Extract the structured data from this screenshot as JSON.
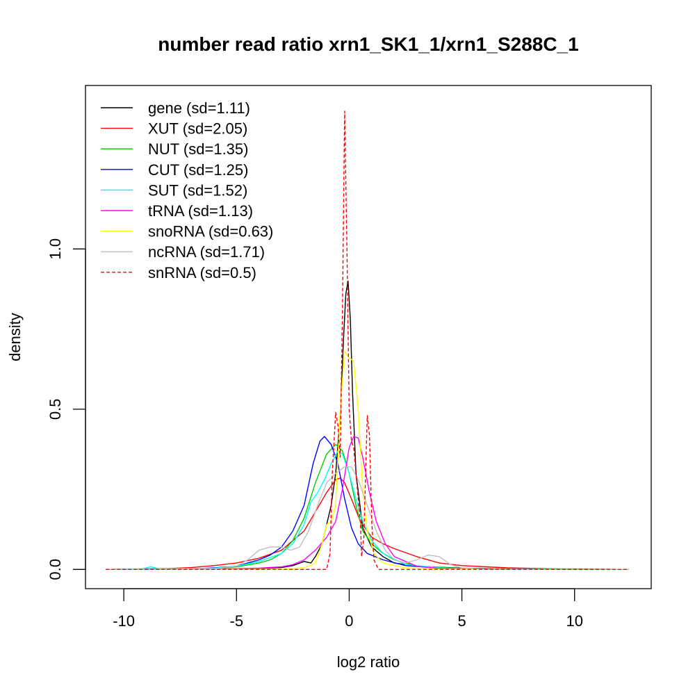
{
  "chart_data": {
    "type": "line",
    "title": "number read ratio xrn1_SK1_1/xrn1_S288C_1",
    "xlabel": "log2 ratio",
    "ylabel": "density",
    "xlim": [
      -11.7,
      13.4
    ],
    "ylim": [
      -0.06,
      1.51
    ],
    "x_ticks": [
      -10,
      -5,
      0,
      5,
      10
    ],
    "x_tick_labels": [
      "-10",
      "-5",
      "0",
      "5",
      "10"
    ],
    "y_ticks": [
      0.0,
      0.5,
      1.0
    ],
    "y_tick_labels": [
      "0.0",
      "0.5",
      "1.0"
    ],
    "grid": false,
    "legend_position": "top-left",
    "series": [
      {
        "name": "gene (sd=1.11)",
        "color": "#000000",
        "dash": false,
        "points": [
          [
            -10.8,
            0
          ],
          [
            -6,
            0.002
          ],
          [
            -4,
            0.003
          ],
          [
            -3,
            0.006
          ],
          [
            -2.5,
            0.012
          ],
          [
            -2,
            0.025
          ],
          [
            -1.7,
            0.02
          ],
          [
            -1.5,
            0.04
          ],
          [
            -1.2,
            0.08
          ],
          [
            -1,
            0.14
          ],
          [
            -0.8,
            0.2
          ],
          [
            -0.6,
            0.3
          ],
          [
            -0.4,
            0.48
          ],
          [
            -0.25,
            0.72
          ],
          [
            -0.15,
            0.86
          ],
          [
            -0.05,
            0.9
          ],
          [
            0.05,
            0.78
          ],
          [
            0.15,
            0.55
          ],
          [
            0.3,
            0.3
          ],
          [
            0.6,
            0.13
          ],
          [
            1,
            0.07
          ],
          [
            1.5,
            0.04
          ],
          [
            2,
            0.02
          ],
          [
            3,
            0.01
          ],
          [
            5,
            0.004
          ],
          [
            8,
            0.001
          ],
          [
            12.4,
            0
          ]
        ]
      },
      {
        "name": "XUT (sd=2.05)",
        "color": "#ff0000",
        "dash": false,
        "points": [
          [
            -10.8,
            0
          ],
          [
            -8,
            0.003
          ],
          [
            -7,
            0.006
          ],
          [
            -6,
            0.012
          ],
          [
            -5,
            0.02
          ],
          [
            -4,
            0.035
          ],
          [
            -3,
            0.06
          ],
          [
            -2,
            0.12
          ],
          [
            -1.5,
            0.18
          ],
          [
            -1,
            0.24
          ],
          [
            -0.6,
            0.28
          ],
          [
            -0.4,
            0.285
          ],
          [
            -0.2,
            0.27
          ],
          [
            0.1,
            0.22
          ],
          [
            0.5,
            0.15
          ],
          [
            1,
            0.1
          ],
          [
            1.5,
            0.08
          ],
          [
            2,
            0.065
          ],
          [
            3,
            0.04
          ],
          [
            4,
            0.02
          ],
          [
            5,
            0.012
          ],
          [
            7,
            0.005
          ],
          [
            9,
            0.002
          ],
          [
            12.4,
            0
          ]
        ]
      },
      {
        "name": "NUT (sd=1.35)",
        "color": "#00cd00",
        "dash": false,
        "points": [
          [
            -10.8,
            0
          ],
          [
            -6,
            0.003
          ],
          [
            -5,
            0.008
          ],
          [
            -4,
            0.02
          ],
          [
            -3.5,
            0.03
          ],
          [
            -3,
            0.05
          ],
          [
            -2.5,
            0.09
          ],
          [
            -2,
            0.16
          ],
          [
            -1.5,
            0.27
          ],
          [
            -1,
            0.36
          ],
          [
            -0.6,
            0.39
          ],
          [
            -0.3,
            0.37
          ],
          [
            0,
            0.3
          ],
          [
            0.3,
            0.2
          ],
          [
            0.6,
            0.12
          ],
          [
            1,
            0.08
          ],
          [
            1.5,
            0.05
          ],
          [
            2,
            0.03
          ],
          [
            3,
            0.01
          ],
          [
            5,
            0.003
          ],
          [
            12.4,
            0
          ]
        ]
      },
      {
        "name": "CUT (sd=1.25)",
        "color": "#0000ff",
        "dash": false,
        "points": [
          [
            -10.8,
            0
          ],
          [
            -7,
            0.002
          ],
          [
            -6,
            0.005
          ],
          [
            -5,
            0.01
          ],
          [
            -4.5,
            0.02
          ],
          [
            -4,
            0.03
          ],
          [
            -3.5,
            0.045
          ],
          [
            -3,
            0.07
          ],
          [
            -2.5,
            0.12
          ],
          [
            -2,
            0.2
          ],
          [
            -1.6,
            0.33
          ],
          [
            -1.3,
            0.4
          ],
          [
            -1.1,
            0.415
          ],
          [
            -0.8,
            0.39
          ],
          [
            -0.5,
            0.33
          ],
          [
            -0.2,
            0.22
          ],
          [
            0.1,
            0.13
          ],
          [
            0.4,
            0.08
          ],
          [
            0.8,
            0.05
          ],
          [
            1.5,
            0.03
          ],
          [
            2.5,
            0.012
          ],
          [
            4,
            0.004
          ],
          [
            6,
            0.001
          ],
          [
            12.4,
            0
          ]
        ]
      },
      {
        "name": "SUT (sd=1.52)",
        "color": "#00ffff",
        "dash": false,
        "points": [
          [
            -10.8,
            0
          ],
          [
            -9.2,
            0.002
          ],
          [
            -8.8,
            0.008
          ],
          [
            -8.4,
            0.002
          ],
          [
            -6,
            0.004
          ],
          [
            -5,
            0.01
          ],
          [
            -4,
            0.025
          ],
          [
            -3,
            0.05
          ],
          [
            -2.5,
            0.08
          ],
          [
            -2,
            0.14
          ],
          [
            -1.7,
            0.21
          ],
          [
            -1.4,
            0.24
          ],
          [
            -1.1,
            0.28
          ],
          [
            -0.8,
            0.33
          ],
          [
            -0.5,
            0.37
          ],
          [
            -0.3,
            0.36
          ],
          [
            0,
            0.3
          ],
          [
            0.3,
            0.22
          ],
          [
            0.6,
            0.15
          ],
          [
            1,
            0.09
          ],
          [
            1.5,
            0.05
          ],
          [
            2.5,
            0.015
          ],
          [
            4,
            0.005
          ],
          [
            6,
            0.001
          ],
          [
            12.4,
            0
          ]
        ]
      },
      {
        "name": "tRNA (sd=1.13)",
        "color": "#ff00ff",
        "dash": false,
        "points": [
          [
            -10.8,
            0
          ],
          [
            -6,
            0.001
          ],
          [
            -4,
            0.004
          ],
          [
            -3,
            0.008
          ],
          [
            -2.5,
            0.015
          ],
          [
            -2,
            0.03
          ],
          [
            -1.5,
            0.06
          ],
          [
            -1,
            0.1
          ],
          [
            -0.6,
            0.15
          ],
          [
            -0.3,
            0.25
          ],
          [
            0,
            0.38
          ],
          [
            0.2,
            0.415
          ],
          [
            0.4,
            0.41
          ],
          [
            0.6,
            0.35
          ],
          [
            0.9,
            0.24
          ],
          [
            1.2,
            0.15
          ],
          [
            1.6,
            0.08
          ],
          [
            2,
            0.04
          ],
          [
            3,
            0.01
          ],
          [
            4,
            0.003
          ],
          [
            6,
            0.001
          ],
          [
            12.4,
            0
          ]
        ]
      },
      {
        "name": "snoRNA (sd=0.63)",
        "color": "#ffff00",
        "dash": false,
        "points": [
          [
            -10.8,
            0
          ],
          [
            -3,
            0.001
          ],
          [
            -2,
            0.005
          ],
          [
            -1.5,
            0.02
          ],
          [
            -1.2,
            0.08
          ],
          [
            -1,
            0.14
          ],
          [
            -0.8,
            0.15
          ],
          [
            -0.6,
            0.2
          ],
          [
            -0.4,
            0.5
          ],
          [
            -0.2,
            0.68
          ],
          [
            0,
            0.66
          ],
          [
            0.2,
            0.65
          ],
          [
            0.4,
            0.5
          ],
          [
            0.6,
            0.25
          ],
          [
            0.8,
            0.12
          ],
          [
            1.1,
            0.05
          ],
          [
            1.5,
            0.02
          ],
          [
            2.5,
            0.005
          ],
          [
            4,
            0.001
          ],
          [
            12.4,
            0
          ]
        ]
      },
      {
        "name": "ncRNA (sd=1.71)",
        "color": "#bebebe",
        "dash": false,
        "points": [
          [
            -10.8,
            0
          ],
          [
            -6,
            0.002
          ],
          [
            -5,
            0.01
          ],
          [
            -4.5,
            0.03
          ],
          [
            -4,
            0.06
          ],
          [
            -3.5,
            0.07
          ],
          [
            -3,
            0.07
          ],
          [
            -2.6,
            0.06
          ],
          [
            -2.2,
            0.07
          ],
          [
            -1.8,
            0.12
          ],
          [
            -1.4,
            0.2
          ],
          [
            -1,
            0.27
          ],
          [
            -0.6,
            0.3
          ],
          [
            -0.2,
            0.32
          ],
          [
            0.1,
            0.32
          ],
          [
            0.4,
            0.28
          ],
          [
            0.8,
            0.2
          ],
          [
            1.2,
            0.12
          ],
          [
            1.6,
            0.06
          ],
          [
            2,
            0.03
          ],
          [
            2.5,
            0.02
          ],
          [
            3,
            0.03
          ],
          [
            3.5,
            0.045
          ],
          [
            4,
            0.04
          ],
          [
            4.5,
            0.015
          ],
          [
            5,
            0.005
          ],
          [
            6,
            0.001
          ],
          [
            12.4,
            0
          ]
        ]
      },
      {
        "name": "snRNA (sd=0.5)",
        "color": "#ff0000",
        "dash": true,
        "points": [
          [
            -10.8,
            0
          ],
          [
            -1,
            0
          ],
          [
            -0.85,
            0.05
          ],
          [
            -0.75,
            0.3
          ],
          [
            -0.6,
            0.49
          ],
          [
            -0.5,
            0.45
          ],
          [
            -0.4,
            0.35
          ],
          [
            -0.3,
            0.8
          ],
          [
            -0.2,
            1.43
          ],
          [
            -0.1,
            1.0
          ],
          [
            0,
            0.5
          ],
          [
            0.1,
            0.4
          ],
          [
            0.2,
            0.38
          ],
          [
            0.3,
            0.3
          ],
          [
            0.4,
            0.22
          ],
          [
            0.5,
            0.15
          ],
          [
            0.55,
            0.04
          ],
          [
            0.65,
            0.1
          ],
          [
            0.8,
            0.48
          ],
          [
            0.9,
            0.42
          ],
          [
            1.0,
            0.15
          ],
          [
            1.1,
            0.03
          ],
          [
            1.3,
            0
          ],
          [
            12.4,
            0
          ]
        ]
      }
    ]
  }
}
